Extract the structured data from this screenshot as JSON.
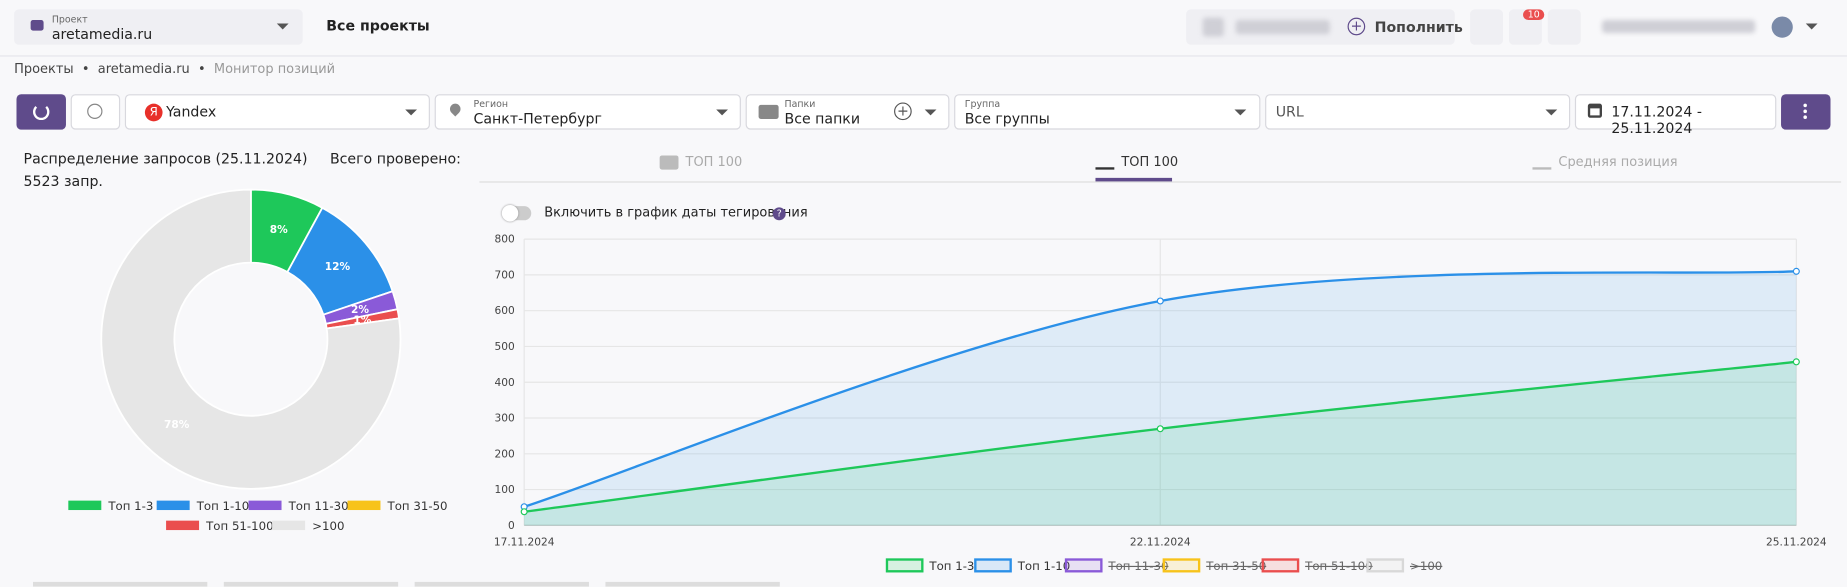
{
  "header": {
    "project_label": "Проект",
    "project": "aretamedia.ru",
    "all_projects": "Все проекты",
    "top_up": "Пополнить",
    "notifications": "10"
  },
  "breadcrumbs": [
    "Проекты",
    "aretamedia.ru",
    "Монитор позиций"
  ],
  "filters": {
    "engine": "Yandex",
    "region_label": "Регион",
    "region": "Санкт-Петербург",
    "folders_label": "Папки",
    "folders": "Все папки",
    "group_label": "Группа",
    "group": "Все группы",
    "url": "URL",
    "dates": "17.11.2024 - 25.11.2024"
  },
  "tabs": [
    "ТОП 100",
    "ТОП 100",
    "Средняя позиция"
  ],
  "toggle": "Включить в график даты тегирования",
  "chart_data": [
    {
      "type": "pie",
      "donut": true,
      "title": "Распределение запросов (25.11.2024)",
      "subtitle": "Всего проверено: 5523 запр.",
      "categories": [
        "Топ 1-3",
        "Топ 1-10",
        "Топ 11-30",
        "Топ 31-50",
        "Топ 51-100",
        ">100"
      ],
      "values": [
        8,
        12,
        2,
        0,
        1,
        78
      ],
      "value_labels": [
        "8%",
        "12%",
        "2%",
        null,
        "1%",
        "78%"
      ],
      "colors": [
        "#1ec85a",
        "#2b90e8",
        "#8a5ad8",
        "#f7c31b",
        "#ea4e4e",
        "#e6e6e6"
      ],
      "legend": "bottom"
    },
    {
      "type": "line",
      "categories": [
        "17.11.2024",
        "22.11.2024",
        "25.11.2024"
      ],
      "series": [
        {
          "name": "Топ 1-3",
          "color": "#1ec85a",
          "values": [
            38,
            270,
            457
          ]
        },
        {
          "name": "Топ 1-10",
          "color": "#2b90e8",
          "values": [
            52,
            627,
            710
          ]
        },
        {
          "name": "Топ 11-30",
          "color": "#8a5ad8",
          "hidden": true
        },
        {
          "name": "Топ 31-50",
          "color": "#f7c31b",
          "hidden": true
        },
        {
          "name": "Топ 51-100",
          "color": "#ea4e4e",
          "hidden": true
        },
        {
          "name": ">100",
          "color": "#d8d8d8",
          "hidden": true
        }
      ],
      "ylim": [
        0,
        800
      ],
      "yticks": [
        0,
        100,
        200,
        300,
        400,
        500,
        600,
        700,
        800
      ],
      "grid": true,
      "legend": "bottom"
    }
  ]
}
